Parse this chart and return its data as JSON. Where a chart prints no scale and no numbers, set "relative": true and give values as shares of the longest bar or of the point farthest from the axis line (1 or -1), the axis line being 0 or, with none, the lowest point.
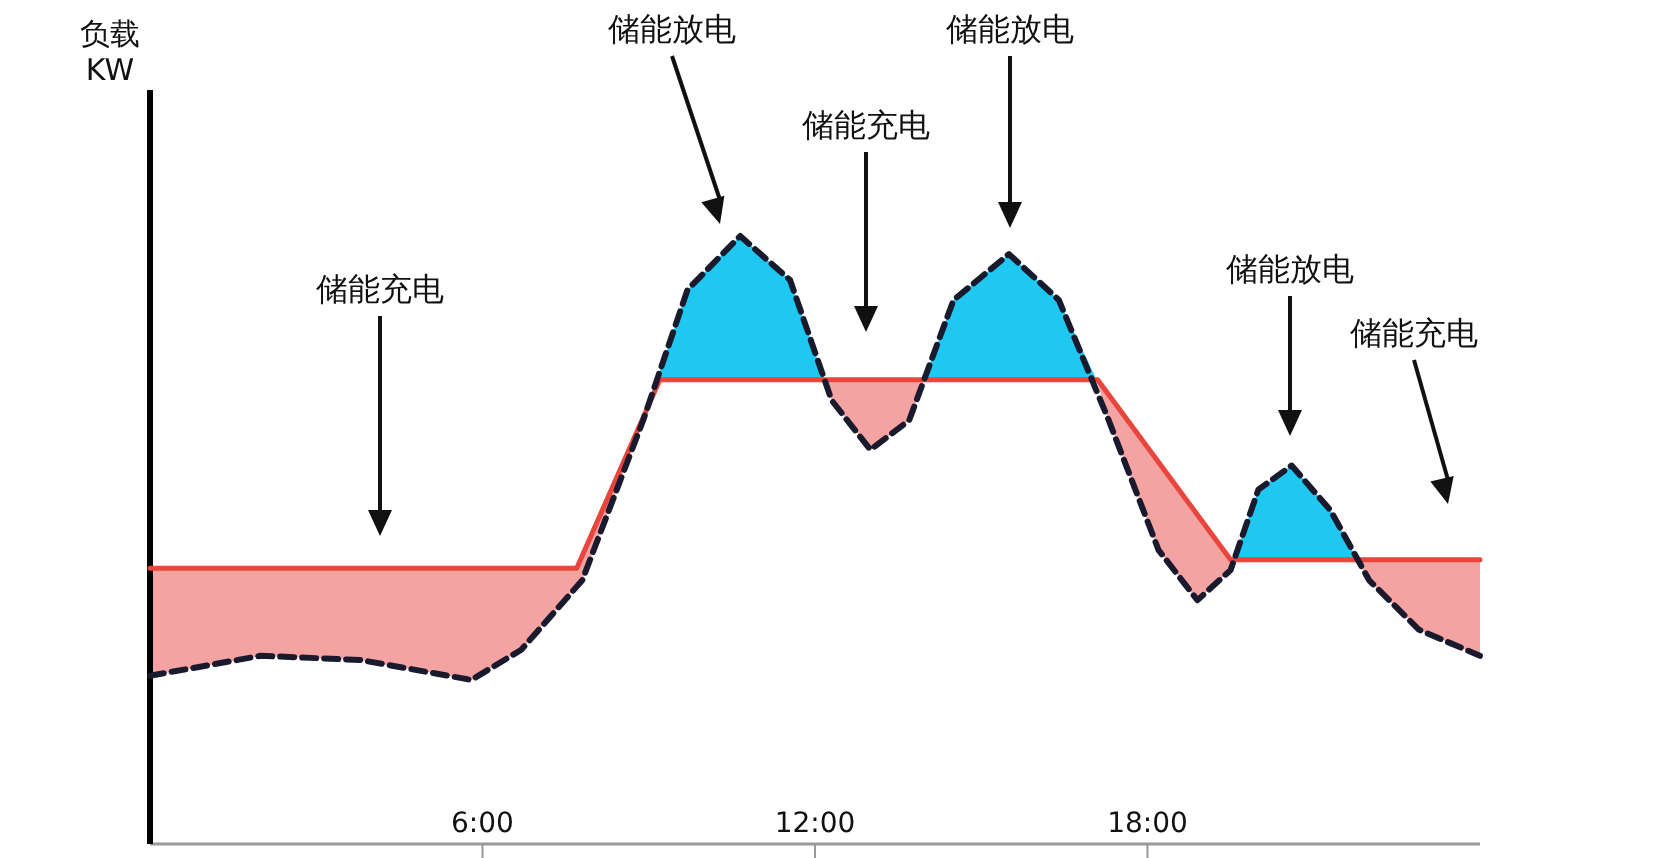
{
  "chart_data": {
    "type": "line",
    "relative": true,
    "ylabel": "负载\nKW",
    "xlim": [
      0,
      24
    ],
    "xticks": [
      {
        "value": 6,
        "label": "6:00"
      },
      {
        "value": 12,
        "label": "12:00"
      },
      {
        "value": 18,
        "label": "18:00"
      }
    ],
    "grid": false,
    "marker": "none",
    "series": [
      {
        "color": "#e8463c",
        "line_style": "solid",
        "x": [
          0,
          7.7,
          9.2,
          17.1,
          19.5,
          24
        ],
        "values": [
          0.45,
          0.45,
          0.762,
          0.762,
          0.464,
          0.464
        ]
      },
      {
        "color": "#1a1a2e",
        "line_style": "dashed",
        "x": [
          0,
          2.0,
          3.8,
          5.8,
          6.7,
          7.8,
          8.9,
          9.7,
          10.65,
          11.55,
          12.3,
          13.0,
          13.7,
          14.5,
          15.5,
          16.4,
          17.3,
          18.2,
          18.9,
          19.5,
          20.0,
          20.6,
          21.3,
          22.0,
          22.9,
          24.0
        ],
        "values": [
          0.272,
          0.305,
          0.298,
          0.265,
          0.315,
          0.43,
          0.695,
          0.911,
          1.0,
          0.927,
          0.728,
          0.646,
          0.695,
          0.894,
          0.97,
          0.894,
          0.695,
          0.48,
          0.397,
          0.447,
          0.58,
          0.62,
          0.546,
          0.43,
          0.348,
          0.305
        ]
      },
      {
        "color": "#f4a3a3",
        "x": [
          0,
          2,
          3.8,
          5.8,
          6.7,
          7.7,
          7.8,
          8.9,
          8.93
        ],
        "values": [
          null,
          null,
          null,
          null,
          null,
          null,
          null,
          null,
          null
        ],
        "lower": [
          0.45,
          0.45,
          0.45,
          0.45,
          0.45,
          0.45,
          0.471,
          0.7,
          0.706
        ],
        "upper": [
          0.272,
          0.305,
          0.298,
          0.265,
          0.315,
          0.42,
          0.43,
          0.695,
          0.706
        ]
      },
      {
        "color": "#f4a3a3",
        "x": [
          12.17,
          12.3,
          13.0,
          13.7,
          13.97
        ],
        "values": [
          null,
          null,
          null,
          null,
          null
        ],
        "lower": [
          0.762,
          0.762,
          0.762,
          0.762,
          0.762
        ],
        "upper": [
          0.762,
          0.728,
          0.646,
          0.695,
          0.762
        ]
      },
      {
        "color": "#f4a3a3",
        "x": [
          17.08,
          17.3,
          18.2,
          18.9,
          19.5,
          19.56
        ],
        "values": [
          null,
          null,
          null,
          null,
          null,
          null
        ],
        "lower": [
          0.762,
          0.737,
          0.626,
          0.539,
          0.464,
          0.464
        ],
        "upper": [
          0.762,
          0.695,
          0.48,
          0.397,
          0.447,
          0.464
        ]
      },
      {
        "color": "#f4a3a3",
        "x": [
          21.79,
          22.0,
          22.9,
          24.0
        ],
        "values": [
          null,
          null,
          null,
          null
        ],
        "lower": [
          0.464,
          0.464,
          0.464,
          0.464
        ],
        "upper": [
          0.464,
          0.43,
          0.348,
          0.305
        ]
      },
      {
        "color": "#1ec8f0",
        "x": [
          8.93,
          9.2,
          9.7,
          10.65,
          11.55,
          12.17
        ],
        "values": [
          null,
          null,
          null,
          null,
          null,
          null
        ],
        "lower": [
          0.706,
          0.762,
          0.762,
          0.762,
          0.762,
          0.762
        ],
        "upper": [
          0.706,
          0.776,
          0.911,
          1.0,
          0.927,
          0.762
        ]
      },
      {
        "color": "#1ec8f0",
        "x": [
          13.97,
          14.5,
          15.5,
          16.4,
          17.08
        ],
        "values": [
          null,
          null,
          null,
          null,
          null
        ],
        "lower": [
          0.762,
          0.762,
          0.762,
          0.762,
          0.762
        ],
        "upper": [
          0.762,
          0.894,
          0.97,
          0.894,
          0.762
        ]
      },
      {
        "color": "#1ec8f0",
        "x": [
          19.56,
          20.0,
          20.6,
          21.3,
          21.79
        ],
        "values": [
          null,
          null,
          null,
          null,
          null
        ],
        "lower": [
          0.464,
          0.464,
          0.464,
          0.464,
          0.464
        ],
        "upper": [
          0.464,
          0.58,
          0.62,
          0.546,
          0.464
        ]
      }
    ],
    "annotations": [
      "储能充电",
      "储能放电",
      "储能充电",
      "储能放电",
      "储能放电",
      "储能充电"
    ]
  }
}
